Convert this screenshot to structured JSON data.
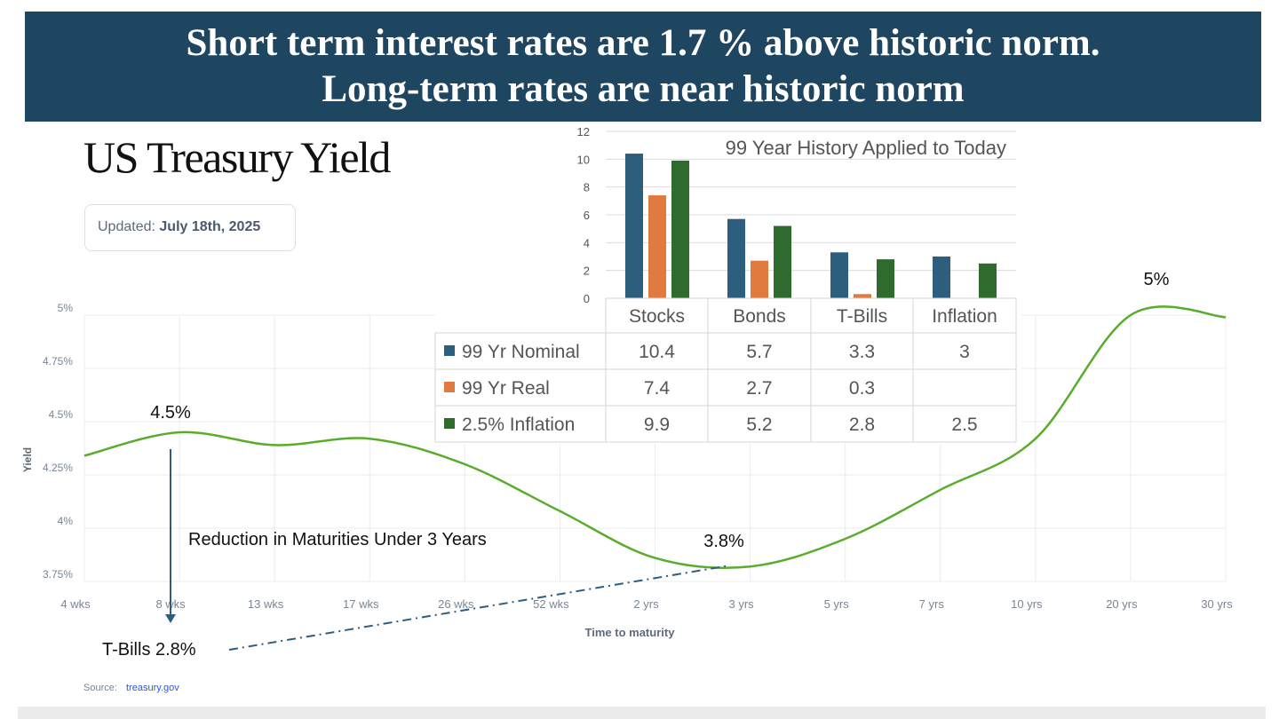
{
  "banner": {
    "line1": "Short term interest rates are 1.7 % above historic norm.",
    "line2": "Long-term rates are near historic norm"
  },
  "header": {
    "title": "US Treasury Yield",
    "updated_label": "Updated:",
    "updated_date": "July 18th, 2025"
  },
  "source": {
    "label": "Source:",
    "link": "treasury.gov"
  },
  "annotations": {
    "peak_short": "4.5%",
    "trough": "3.8%",
    "peak_long": "5%",
    "reduction": "Reduction in Maturities Under 3 Years",
    "tbills": "T-Bills 2.8%"
  },
  "colors": {
    "banner": "#1f4661",
    "curve": "#5aac2c",
    "nominal": "#2e5e7e",
    "real": "#e07a3f",
    "inflation": "#2f6b2c",
    "arrow": "#2e5e7e"
  },
  "chart_data": [
    {
      "type": "line",
      "title": "US Treasury Yield",
      "xlabel": "Time to maturity",
      "ylabel": "Yield",
      "categories": [
        "4 wks",
        "8 wks",
        "13 wks",
        "17 wks",
        "26 wks",
        "52 wks",
        "2 yrs",
        "3 yrs",
        "5 yrs",
        "7 yrs",
        "10 yrs",
        "20 yrs",
        "30 yrs"
      ],
      "values": [
        4.34,
        4.45,
        4.39,
        4.42,
        4.3,
        4.08,
        3.86,
        3.82,
        3.95,
        4.18,
        4.42,
        5.0,
        4.99
      ],
      "ylim": [
        3.75,
        5
      ],
      "yticks": [
        "5%",
        "4.75%",
        "4.5%",
        "4.25%",
        "4%",
        "3.75%"
      ],
      "ytick_values": [
        5,
        4.75,
        4.5,
        4.25,
        4,
        3.75
      ],
      "grid": true
    },
    {
      "type": "bar",
      "title": "99 Year History Applied to Today",
      "categories": [
        "Stocks",
        "Bonds",
        "T-Bills",
        "Inflation"
      ],
      "series": [
        {
          "name": "99 Yr Nominal",
          "values": [
            10.4,
            5.7,
            3.3,
            3
          ],
          "labels": [
            "10.4",
            "5.7",
            "3.3",
            "3"
          ]
        },
        {
          "name": "99 Yr Real",
          "values": [
            7.4,
            2.7,
            0.3,
            null
          ],
          "labels": [
            "7.4",
            "2.7",
            "0.3",
            ""
          ]
        },
        {
          "name": "2.5% Inflation",
          "values": [
            9.9,
            5.2,
            2.8,
            2.5
          ],
          "labels": [
            "9.9",
            "5.2",
            "2.8",
            "2.5"
          ]
        }
      ],
      "ylim": [
        0,
        12
      ],
      "yticks": [
        "0",
        "2",
        "4",
        "6",
        "8",
        "10",
        "12"
      ],
      "grid": true,
      "legend": "data-table"
    }
  ]
}
